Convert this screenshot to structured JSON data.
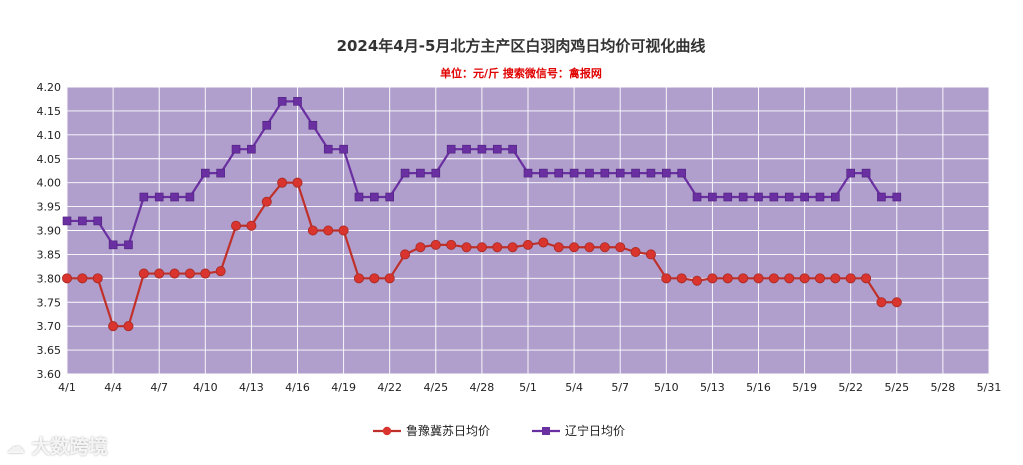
{
  "chart_data": {
    "type": "line",
    "title": "2024年4月-5月北方主产区白羽肉鸡日均价可视化曲线",
    "subtitle": "单位：元/斤    搜索微信号：禽报网",
    "ylim": [
      3.6,
      4.2
    ],
    "y_ticks": [
      "4.20",
      "4.15",
      "4.10",
      "4.05",
      "4.00",
      "3.95",
      "3.90",
      "3.85",
      "3.80",
      "3.75",
      "3.70",
      "3.65",
      "3.60"
    ],
    "x_ticks": [
      "4/1",
      "4/4",
      "4/7",
      "4/10",
      "4/13",
      "4/16",
      "4/19",
      "4/22",
      "4/25",
      "4/28",
      "5/1",
      "5/4",
      "5/7",
      "5/10",
      "5/13",
      "5/16",
      "5/19",
      "5/22",
      "5/25",
      "5/28",
      "5/31"
    ],
    "plot_bg": "#b09fcc",
    "grid": true,
    "legend_placement": "bottom",
    "series": [
      {
        "name": "鲁豫冀苏日均价",
        "color": "#c0302a",
        "marker": "circle",
        "x": [
          "4/1",
          "4/2",
          "4/3",
          "4/4",
          "4/5",
          "4/6",
          "4/7",
          "4/8",
          "4/9",
          "4/10",
          "4/11",
          "4/12",
          "4/13",
          "4/14",
          "4/15",
          "4/16",
          "4/17",
          "4/18",
          "4/19",
          "4/20",
          "4/21",
          "4/22",
          "4/23",
          "4/24",
          "4/25",
          "4/26",
          "4/27",
          "4/28",
          "4/29",
          "4/30",
          "5/1",
          "5/2",
          "5/3",
          "5/4",
          "5/5",
          "5/6",
          "5/7",
          "5/8",
          "5/9",
          "5/10",
          "5/11",
          "5/12",
          "5/13",
          "5/14",
          "5/15",
          "5/16",
          "5/17",
          "5/18",
          "5/19",
          "5/20",
          "5/21",
          "5/22",
          "5/23",
          "5/24",
          "5/25"
        ],
        "values": [
          3.8,
          3.8,
          3.8,
          3.7,
          3.7,
          3.81,
          3.81,
          3.81,
          3.81,
          3.81,
          3.815,
          3.91,
          3.91,
          3.96,
          4.0,
          4.0,
          3.9,
          3.9,
          3.9,
          3.8,
          3.8,
          3.8,
          3.85,
          3.865,
          3.87,
          3.87,
          3.865,
          3.865,
          3.865,
          3.865,
          3.87,
          3.875,
          3.865,
          3.865,
          3.865,
          3.865,
          3.865,
          3.855,
          3.85,
          3.8,
          3.8,
          3.795,
          3.8,
          3.8,
          3.8,
          3.8,
          3.8,
          3.8,
          3.8,
          3.8,
          3.8,
          3.8,
          3.8,
          3.75,
          3.75
        ]
      },
      {
        "name": "辽宁日均价",
        "color": "#6a2fa0",
        "marker": "square",
        "x": [
          "4/1",
          "4/2",
          "4/3",
          "4/4",
          "4/5",
          "4/6",
          "4/7",
          "4/8",
          "4/9",
          "4/10",
          "4/11",
          "4/12",
          "4/13",
          "4/14",
          "4/15",
          "4/16",
          "4/17",
          "4/18",
          "4/19",
          "4/20",
          "4/21",
          "4/22",
          "4/23",
          "4/24",
          "4/25",
          "4/26",
          "4/27",
          "4/28",
          "4/29",
          "4/30",
          "5/1",
          "5/2",
          "5/3",
          "5/4",
          "5/5",
          "5/6",
          "5/7",
          "5/8",
          "5/9",
          "5/10",
          "5/11",
          "5/12",
          "5/13",
          "5/14",
          "5/15",
          "5/16",
          "5/17",
          "5/18",
          "5/19",
          "5/20",
          "5/21",
          "5/22",
          "5/23",
          "5/24",
          "5/25"
        ],
        "values": [
          3.92,
          3.92,
          3.92,
          3.87,
          3.87,
          3.97,
          3.97,
          3.97,
          3.97,
          4.02,
          4.02,
          4.07,
          4.07,
          4.12,
          4.17,
          4.17,
          4.12,
          4.07,
          4.07,
          3.97,
          3.97,
          3.97,
          4.02,
          4.02,
          4.02,
          4.07,
          4.07,
          4.07,
          4.07,
          4.07,
          4.02,
          4.02,
          4.02,
          4.02,
          4.02,
          4.02,
          4.02,
          4.02,
          4.02,
          4.02,
          4.02,
          3.97,
          3.97,
          3.97,
          3.97,
          3.97,
          3.97,
          3.97,
          3.97,
          3.97,
          3.97,
          4.02,
          4.02,
          3.97,
          3.97
        ]
      }
    ],
    "watermark": "大数跨境"
  }
}
